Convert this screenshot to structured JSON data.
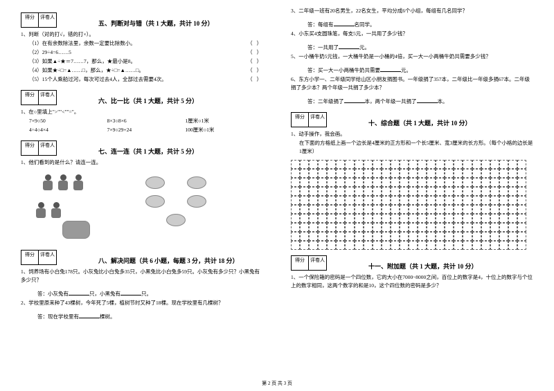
{
  "scorebox": {
    "score_label": "得分",
    "reviewer_label": "评卷人"
  },
  "sec5": {
    "title": "五、判断对与错（共 1 大题，共计 10 分）",
    "intro": "1、判断（对的打√，错的打×）。",
    "q1": "（1）在有余数除法里，余数一定要比除数小。",
    "q2": "（2）29÷4=6……5",
    "q3": "（3）如果▲÷★＝7……7，那么，★最小是8。",
    "q4": "（4）如果★÷□=▲……□，那么，★÷□=▲……□。",
    "q5": "（5）15个人乘船过河，每次可过去4人，全部过去需要4次。",
    "paren": "（   ）"
  },
  "sec6": {
    "title": "六、比一比（共 1 大题，共计 5 分）",
    "intro": "1、在○里填上\">\"\"<\"\"=\"。",
    "r1a": "7×9○50",
    "r1b": "8×3○8×6",
    "r1c": "1厘米○1米",
    "r2a": "4÷4○4×4",
    "r2b": "7×9○29+24",
    "r2c": "100厘米○1米"
  },
  "sec7": {
    "title": "七、连一连（共 1 大题，共计 5 分）",
    "q1": "1、他们看到的是什么？请连一连。"
  },
  "sec8": {
    "title": "八、解决问题（共 6 小题，每题 3 分，共计 18 分）",
    "q1": "1、饲养场有小白兔178只。小灰兔比小白兔多35只，小黑兔比小白兔多59只。小灰兔有多少只？小黑兔有多少只？",
    "ans1_pre": "答：小灰兔有",
    "ans1_mid": "只，小黑兔有",
    "ans1_end": "只。",
    "q2": "2、学校里原来种了43棵树，今年死了5棵，植树节时又种了18棵。现在学校里有几棵树？",
    "ans2_pre": "答：现在学校里有",
    "ans2_end": "棵树。"
  },
  "right": {
    "q3": "3、二年级一班有20名男生，22名女生，平均分成6个小组，每组有几名同学？",
    "ans3_pre": "答：每组有",
    "ans3_end": "名同学。",
    "q4": "4、小东买4支圆珠笔，每支5元，一共用了多少钱？",
    "ans4_pre": "答：一共用了",
    "ans4_end": "元。",
    "q5": "5、一小桶牛奶5元钱，一大桶牛奶是一小桶的4倍，买一大一小两桶牛奶共需要多少钱？",
    "ans5_pre": "答：买一大一小两桶牛奶共需要",
    "ans5_end": "元。",
    "q6a": "6、东方小学一、二年级同学给山区小朋友捐图书。一年级捐了357本，二年级比一年级多捐67本。二年级捐了多少本？两个年级一共捐了多少本？",
    "ans6_pre": "答：二年级捐了",
    "ans6_mid": "本，两个年级一共捐了",
    "ans6_end": "本。"
  },
  "sec10": {
    "title": "十、综合题（共 1 大题，共计 10 分）",
    "q1": "1、动手操作，我会画。",
    "desc": "在下面的方格纸上画一个边长是4厘米的正方形和一个长5厘米、宽3厘米的长方形。（每个小格的边长是1厘米）"
  },
  "sec11": {
    "title": "十一、附加题（共 1 大题，共计 10 分）",
    "q1": "1、一个保险箱的密码是一个四位数，它的大小在7000~8000之间，百位上的数字是4，十位上的数字与个位上的数字相同，这两个数字的和是10，这个四位数的密码是多少？"
  },
  "footer": "第 2 页 共 3 页",
  "grid": {
    "cols": 26,
    "rows": 10
  }
}
